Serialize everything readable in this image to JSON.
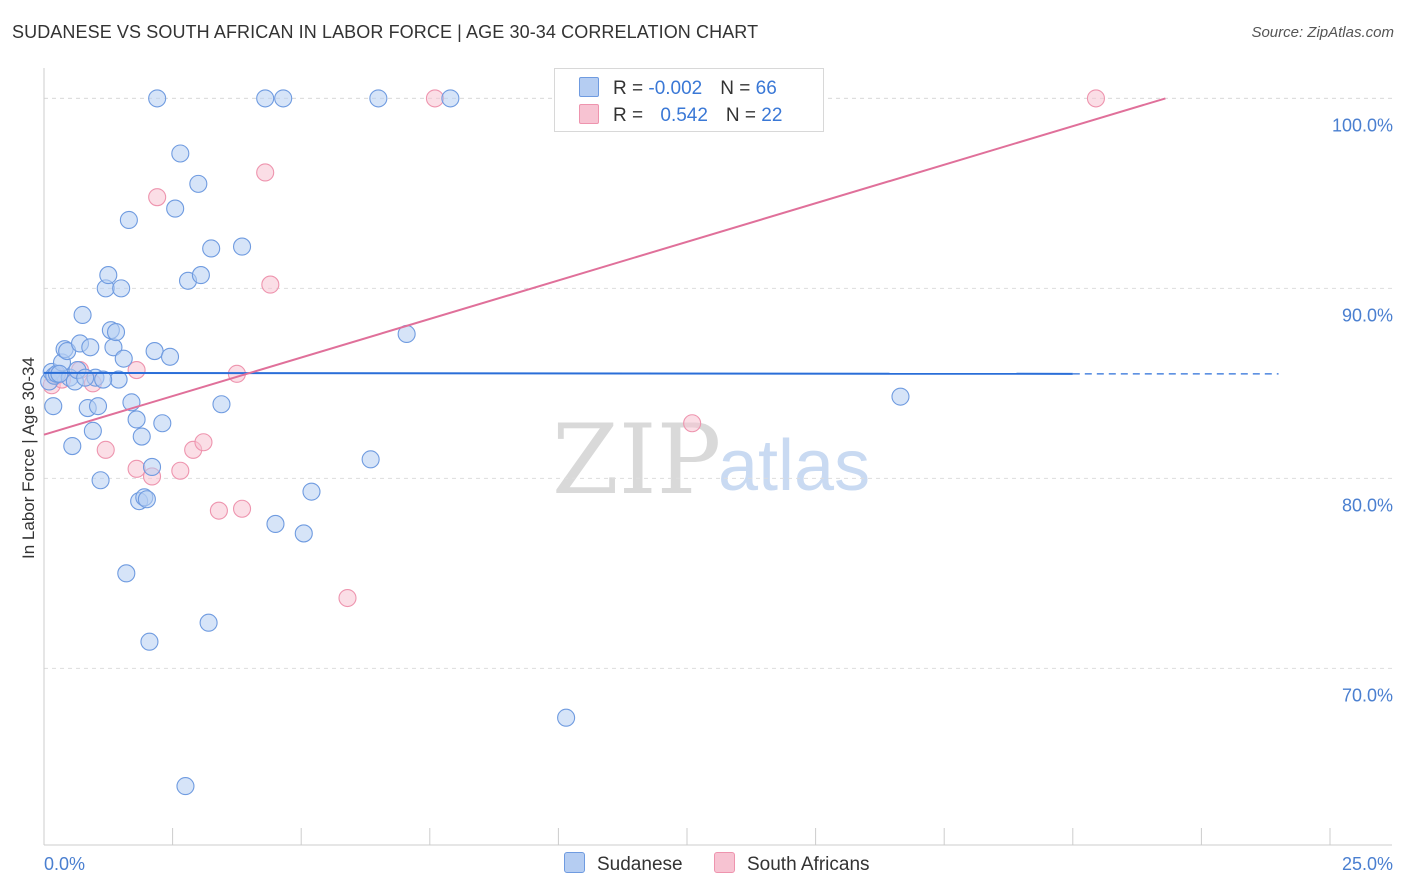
{
  "title": "SUDANESE VS SOUTH AFRICAN IN LABOR FORCE | AGE 30-34 CORRELATION CHART",
  "source": "Source: ZipAtlas.com",
  "watermark": {
    "zip": "ZIP",
    "atlas": "atlas"
  },
  "legend": {
    "rows": [
      {
        "r_label": "R = ",
        "r_value": "-0.002",
        "n_label": "N = ",
        "n_value": "66"
      },
      {
        "r_label": "R = ",
        "r_value": "0.542",
        "n_label": "N = ",
        "n_value": "22"
      }
    ]
  },
  "bottom_legend": [
    "Sudanese",
    "South Africans"
  ],
  "colors": {
    "blue_fill": "#b5cdf2",
    "blue_stroke": "#6f9be0",
    "blue_line": "#2a6ed8",
    "pink_fill": "#f7c3d2",
    "pink_stroke": "#ee94ae",
    "pink_line": "#e0709a",
    "tick_text": "#4a7fd0",
    "grid": "#dddddd"
  },
  "chart_data": {
    "type": "scatter",
    "title": "SUDANESE VS SOUTH AFRICAN IN LABOR FORCE | AGE 30-34 CORRELATION CHART",
    "xlabel": "",
    "ylabel": "In Labor Force | Age 30-34",
    "xlim": [
      0,
      25
    ],
    "ylim": [
      60.7,
      101.6
    ],
    "x_tick_labels": [
      "0.0%",
      "25.0%"
    ],
    "y_ticks": [
      70,
      80,
      90,
      100
    ],
    "y_tick_labels": [
      "70.0%",
      "80.0%",
      "90.0%",
      "100.0%"
    ],
    "series": [
      {
        "name": "Sudanese",
        "r": -0.002,
        "n": 66,
        "trend": {
          "x0": 0,
          "y0": 85.55,
          "x1": 20.0,
          "y1": 85.5,
          "dash_to_x": 24.0
        },
        "points": [
          [
            0.1,
            85.1
          ],
          [
            0.15,
            85.6
          ],
          [
            0.18,
            83.8
          ],
          [
            0.2,
            85.4
          ],
          [
            0.25,
            85.5
          ],
          [
            0.35,
            86.1
          ],
          [
            0.4,
            86.8
          ],
          [
            0.45,
            86.7
          ],
          [
            0.5,
            85.3
          ],
          [
            0.55,
            81.7
          ],
          [
            0.6,
            85.1
          ],
          [
            0.7,
            87.1
          ],
          [
            0.75,
            88.6
          ],
          [
            0.85,
            83.7
          ],
          [
            0.9,
            86.9
          ],
          [
            0.95,
            82.5
          ],
          [
            1.0,
            85.3
          ],
          [
            1.05,
            83.8
          ],
          [
            1.1,
            79.9
          ],
          [
            1.2,
            90.0
          ],
          [
            1.25,
            90.7
          ],
          [
            1.3,
            87.8
          ],
          [
            1.35,
            86.9
          ],
          [
            1.4,
            87.7
          ],
          [
            1.45,
            85.2
          ],
          [
            1.5,
            90.0
          ],
          [
            1.55,
            86.3
          ],
          [
            1.6,
            75.0
          ],
          [
            1.65,
            93.6
          ],
          [
            1.7,
            84.0
          ],
          [
            1.8,
            83.1
          ],
          [
            1.85,
            78.8
          ],
          [
            1.9,
            82.2
          ],
          [
            1.95,
            79.0
          ],
          [
            2.0,
            78.9
          ],
          [
            2.05,
            71.4
          ],
          [
            2.1,
            80.6
          ],
          [
            2.15,
            86.7
          ],
          [
            2.2,
            100.0
          ],
          [
            2.3,
            82.9
          ],
          [
            2.45,
            86.4
          ],
          [
            2.55,
            94.2
          ],
          [
            2.65,
            97.1
          ],
          [
            2.75,
            63.8
          ],
          [
            2.8,
            90.4
          ],
          [
            3.0,
            95.5
          ],
          [
            3.05,
            90.7
          ],
          [
            3.2,
            72.4
          ],
          [
            3.25,
            92.1
          ],
          [
            3.45,
            83.9
          ],
          [
            3.85,
            92.2
          ],
          [
            4.3,
            100.0
          ],
          [
            4.5,
            77.6
          ],
          [
            4.65,
            100.0
          ],
          [
            5.05,
            77.1
          ],
          [
            5.2,
            79.3
          ],
          [
            6.35,
            81.0
          ],
          [
            6.5,
            100.0
          ],
          [
            7.05,
            87.6
          ],
          [
            7.9,
            100.0
          ],
          [
            10.15,
            67.4
          ],
          [
            16.65,
            84.3
          ],
          [
            0.3,
            85.5
          ],
          [
            1.15,
            85.2
          ],
          [
            0.65,
            85.7
          ],
          [
            0.8,
            85.3
          ]
        ]
      },
      {
        "name": "South Africans",
        "r": 0.542,
        "n": 22,
        "trend": {
          "x0": 0,
          "y0": 82.3,
          "x1": 21.8,
          "y1": 100.0
        },
        "points": [
          [
            0.15,
            84.9
          ],
          [
            0.25,
            85.4
          ],
          [
            0.35,
            85.2
          ],
          [
            0.7,
            85.7
          ],
          [
            0.95,
            85.0
          ],
          [
            1.2,
            81.5
          ],
          [
            1.8,
            85.7
          ],
          [
            1.8,
            80.5
          ],
          [
            2.1,
            80.1
          ],
          [
            2.2,
            94.8
          ],
          [
            2.65,
            80.4
          ],
          [
            2.9,
            81.5
          ],
          [
            3.1,
            81.9
          ],
          [
            3.4,
            78.3
          ],
          [
            3.75,
            85.5
          ],
          [
            3.85,
            78.4
          ],
          [
            4.3,
            96.1
          ],
          [
            4.4,
            90.2
          ],
          [
            5.9,
            73.7
          ],
          [
            7.6,
            100.0
          ],
          [
            12.6,
            82.9
          ],
          [
            20.45,
            100.0
          ]
        ]
      }
    ]
  }
}
